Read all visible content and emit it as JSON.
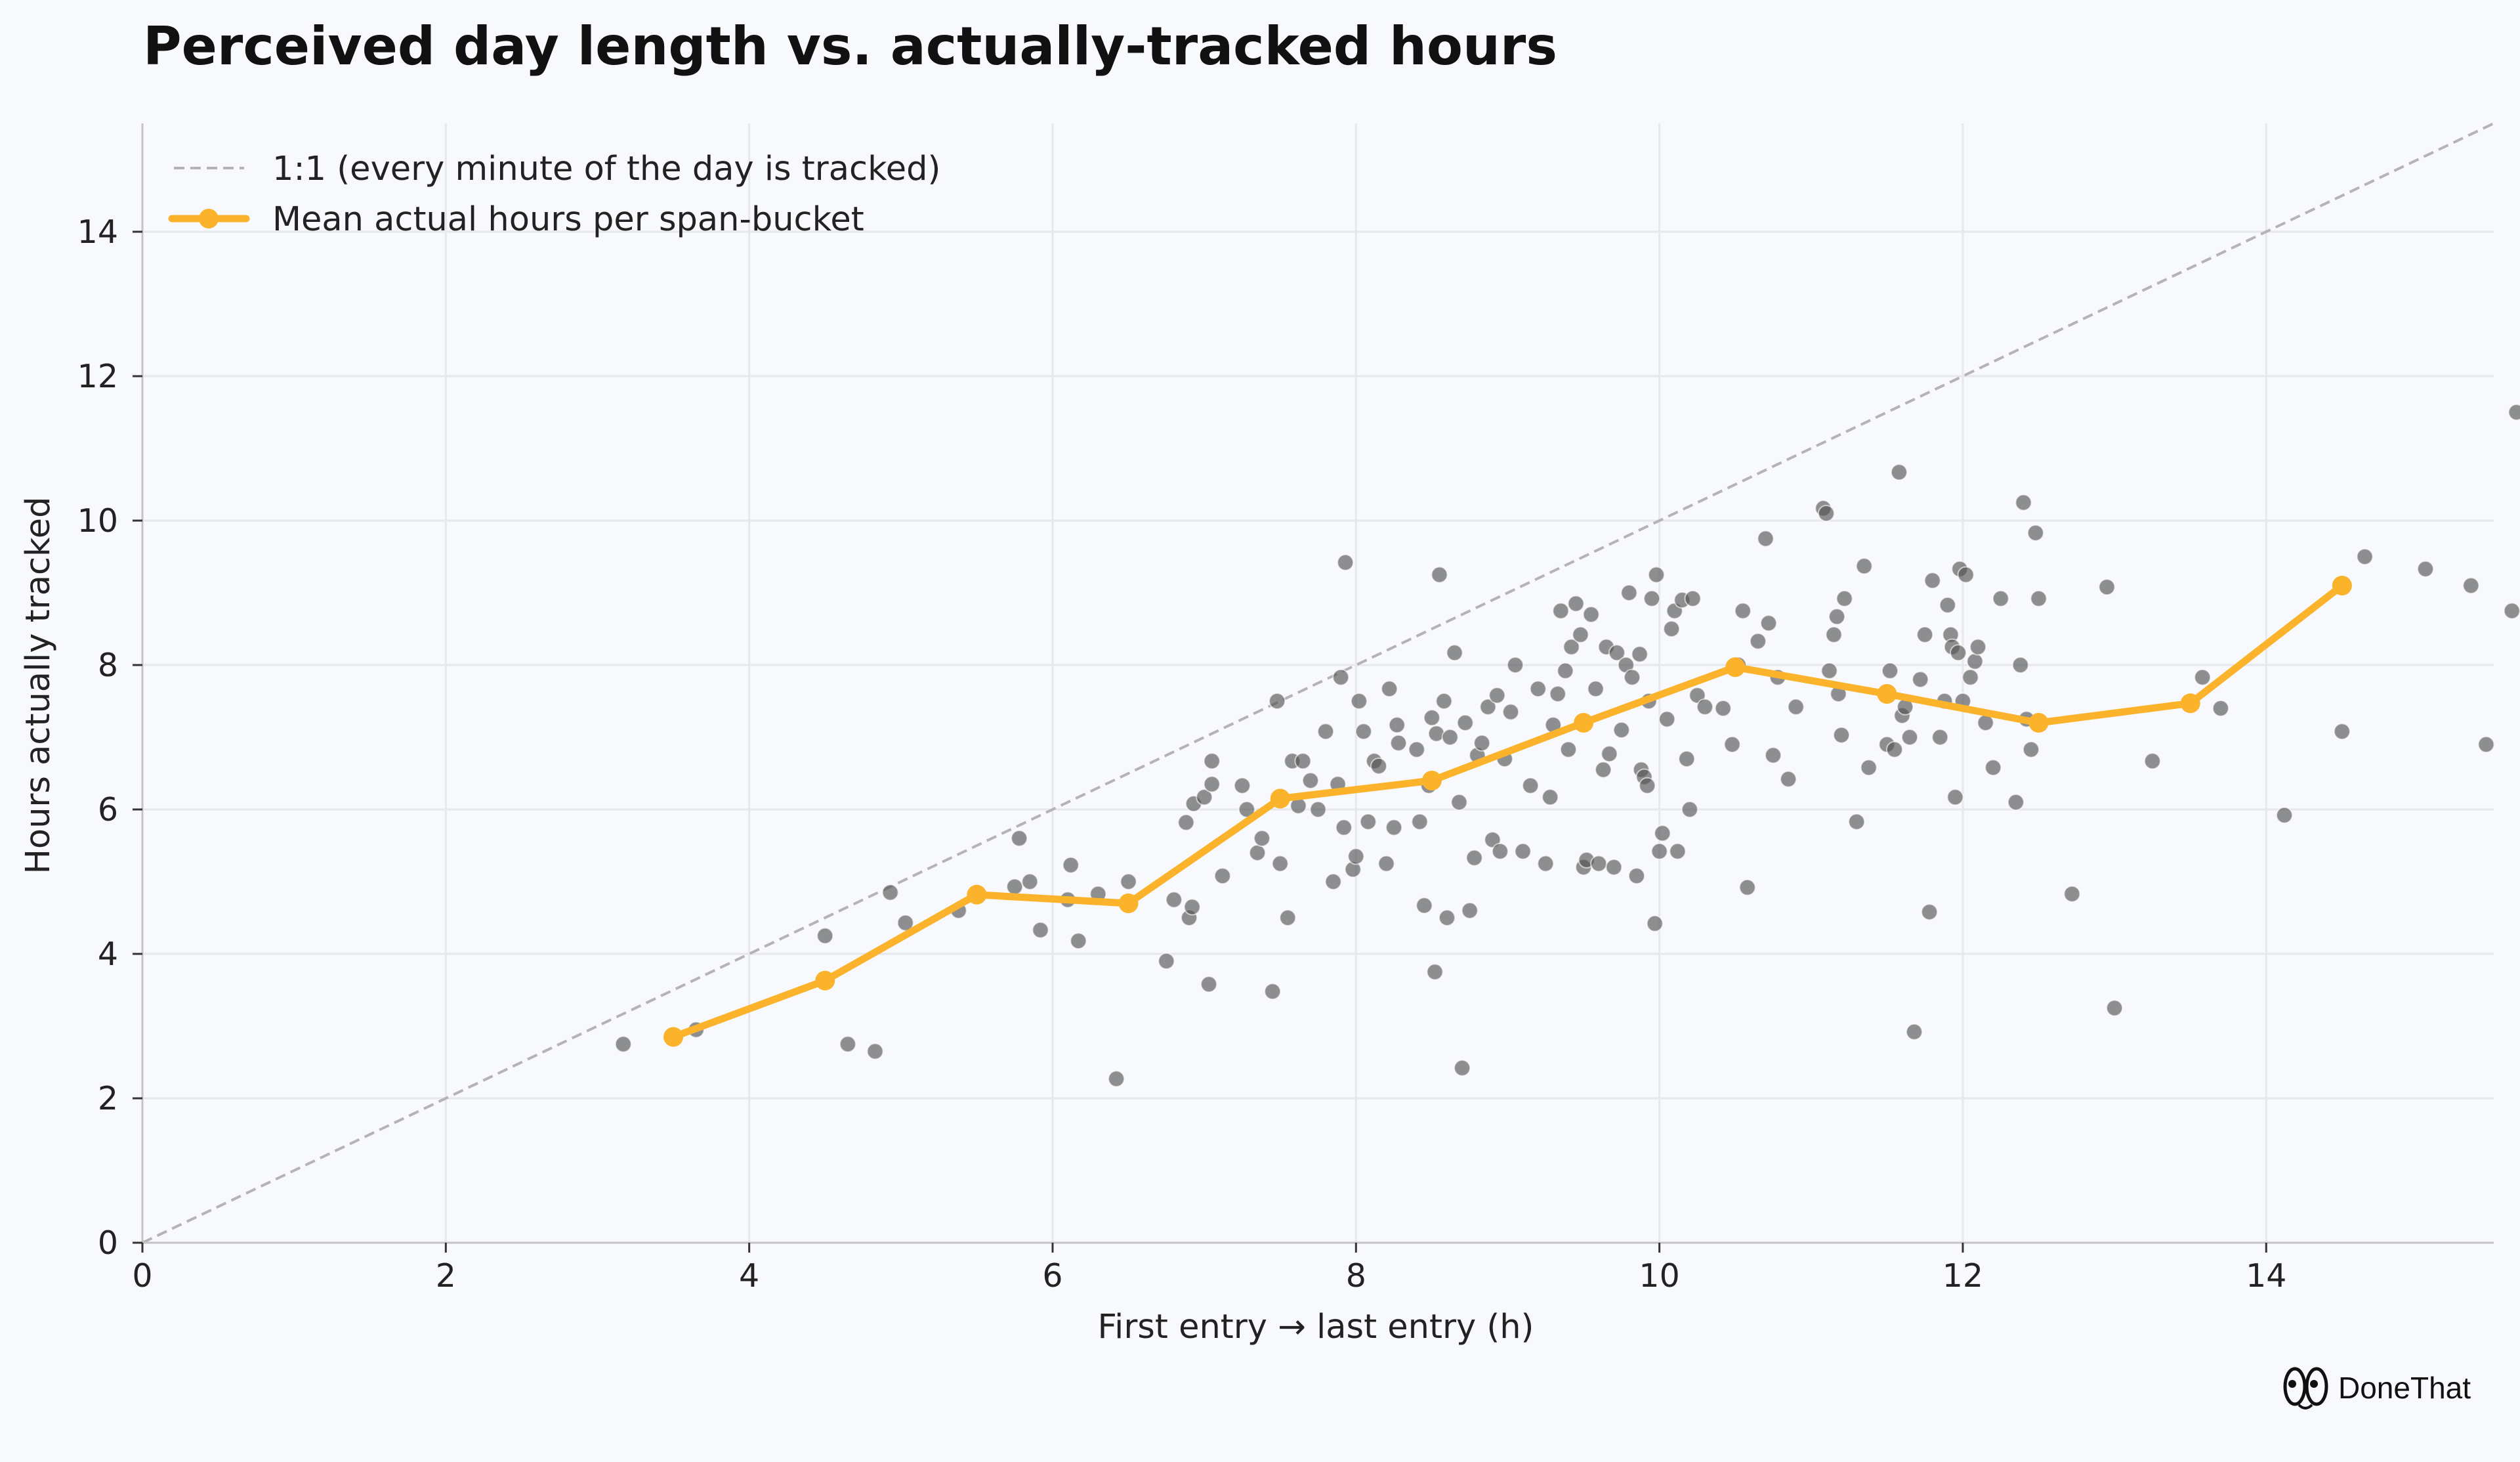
{
  "chart_data": {
    "type": "scatter",
    "title": "Perceived day length vs. actually-tracked hours",
    "xlabel": "First entry → last entry (h)",
    "ylabel": "Hours actually tracked",
    "xlim": [
      0,
      15.5
    ],
    "ylim": [
      0,
      15.5
    ],
    "xticks": [
      0,
      2,
      4,
      6,
      8,
      10,
      12,
      14
    ],
    "yticks": [
      0,
      2,
      4,
      6,
      8,
      10,
      12,
      14
    ],
    "grid": true,
    "legend_position": "top-left",
    "reference_line": {
      "name": "1:1 (every minute of the day is tracked)",
      "x": [
        0,
        15.5
      ],
      "y": [
        0,
        15.5
      ],
      "color": "#b4b4b4",
      "style": "dashed"
    },
    "mean_line": {
      "name": "Mean actual hours per span-bucket",
      "color": "#fbb32b",
      "x": [
        3.5,
        4.5,
        5.5,
        6.5,
        7.5,
        8.5,
        9.5,
        10.5,
        11.5,
        12.5,
        13.5,
        14.5
      ],
      "y": [
        2.85,
        3.63,
        4.82,
        4.7,
        6.15,
        6.4,
        7.2,
        7.97,
        7.6,
        7.2,
        7.47,
        9.1
      ]
    },
    "scatter_color": "#555555",
    "scatter_points": [
      [
        3.17,
        2.75
      ],
      [
        3.65,
        2.95
      ],
      [
        4.5,
        4.25
      ],
      [
        4.65,
        2.75
      ],
      [
        4.83,
        2.65
      ],
      [
        4.93,
        4.85
      ],
      [
        5.03,
        4.43
      ],
      [
        5.38,
        4.6
      ],
      [
        5.75,
        4.93
      ],
      [
        5.78,
        5.6
      ],
      [
        5.85,
        5.0
      ],
      [
        5.92,
        4.33
      ],
      [
        6.1,
        4.75
      ],
      [
        6.12,
        5.23
      ],
      [
        6.17,
        4.18
      ],
      [
        6.3,
        4.83
      ],
      [
        6.42,
        2.27
      ],
      [
        6.5,
        5.0
      ],
      [
        6.75,
        3.9
      ],
      [
        6.8,
        4.75
      ],
      [
        6.88,
        5.82
      ],
      [
        6.9,
        4.5
      ],
      [
        6.92,
        4.65
      ],
      [
        6.93,
        6.08
      ],
      [
        7.0,
        6.17
      ],
      [
        7.03,
        3.58
      ],
      [
        7.05,
        6.67
      ],
      [
        7.05,
        6.35
      ],
      [
        7.12,
        5.08
      ],
      [
        7.25,
        6.33
      ],
      [
        7.28,
        6.0
      ],
      [
        7.35,
        5.4
      ],
      [
        7.38,
        5.6
      ],
      [
        7.45,
        3.48
      ],
      [
        7.48,
        7.5
      ],
      [
        7.5,
        5.25
      ],
      [
        7.55,
        4.5
      ],
      [
        7.58,
        6.67
      ],
      [
        7.62,
        6.05
      ],
      [
        7.65,
        6.67
      ],
      [
        7.7,
        6.4
      ],
      [
        7.75,
        6.0
      ],
      [
        7.8,
        7.08
      ],
      [
        7.85,
        5.0
      ],
      [
        7.88,
        6.35
      ],
      [
        7.9,
        7.83
      ],
      [
        7.92,
        5.75
      ],
      [
        7.93,
        9.42
      ],
      [
        7.98,
        5.17
      ],
      [
        8.0,
        5.35
      ],
      [
        8.02,
        7.5
      ],
      [
        8.05,
        7.08
      ],
      [
        8.08,
        5.83
      ],
      [
        8.12,
        6.67
      ],
      [
        8.15,
        6.6
      ],
      [
        8.2,
        5.25
      ],
      [
        8.22,
        7.67
      ],
      [
        8.25,
        5.75
      ],
      [
        8.27,
        7.17
      ],
      [
        8.28,
        6.92
      ],
      [
        8.4,
        6.83
      ],
      [
        8.42,
        5.83
      ],
      [
        8.45,
        4.67
      ],
      [
        8.48,
        6.33
      ],
      [
        8.5,
        7.27
      ],
      [
        8.52,
        3.75
      ],
      [
        8.53,
        7.05
      ],
      [
        8.55,
        9.25
      ],
      [
        8.58,
        7.5
      ],
      [
        8.6,
        4.5
      ],
      [
        8.62,
        7.0
      ],
      [
        8.65,
        8.17
      ],
      [
        8.68,
        6.1
      ],
      [
        8.7,
        2.42
      ],
      [
        8.72,
        7.2
      ],
      [
        8.75,
        4.6
      ],
      [
        8.78,
        5.33
      ],
      [
        8.8,
        6.75
      ],
      [
        8.83,
        6.92
      ],
      [
        8.87,
        7.42
      ],
      [
        8.9,
        5.58
      ],
      [
        8.93,
        7.58
      ],
      [
        8.95,
        5.42
      ],
      [
        8.98,
        6.7
      ],
      [
        9.02,
        7.35
      ],
      [
        9.05,
        8.0
      ],
      [
        9.1,
        5.42
      ],
      [
        9.15,
        6.33
      ],
      [
        9.2,
        7.67
      ],
      [
        9.25,
        5.25
      ],
      [
        9.28,
        6.17
      ],
      [
        9.3,
        7.17
      ],
      [
        9.33,
        7.6
      ],
      [
        9.35,
        8.75
      ],
      [
        9.38,
        7.92
      ],
      [
        9.4,
        6.83
      ],
      [
        9.42,
        8.25
      ],
      [
        9.45,
        8.85
      ],
      [
        9.48,
        8.42
      ],
      [
        9.5,
        5.2
      ],
      [
        9.52,
        5.3
      ],
      [
        9.55,
        8.7
      ],
      [
        9.58,
        7.67
      ],
      [
        9.6,
        5.25
      ],
      [
        9.63,
        6.55
      ],
      [
        9.65,
        8.25
      ],
      [
        9.67,
        6.77
      ],
      [
        9.7,
        5.2
      ],
      [
        9.72,
        8.17
      ],
      [
        9.75,
        7.1
      ],
      [
        9.78,
        8.0
      ],
      [
        9.8,
        9.0
      ],
      [
        9.82,
        7.83
      ],
      [
        9.85,
        5.08
      ],
      [
        9.87,
        8.15
      ],
      [
        9.88,
        6.55
      ],
      [
        9.9,
        6.45
      ],
      [
        9.92,
        6.33
      ],
      [
        9.93,
        7.5
      ],
      [
        9.95,
        8.92
      ],
      [
        9.97,
        4.42
      ],
      [
        9.98,
        9.25
      ],
      [
        10.0,
        5.42
      ],
      [
        10.02,
        5.67
      ],
      [
        10.05,
        7.25
      ],
      [
        10.08,
        8.5
      ],
      [
        10.1,
        8.75
      ],
      [
        10.12,
        5.42
      ],
      [
        10.15,
        8.9
      ],
      [
        10.18,
        6.7
      ],
      [
        10.2,
        6.0
      ],
      [
        10.22,
        8.92
      ],
      [
        10.25,
        7.58
      ],
      [
        10.3,
        7.42
      ],
      [
        10.42,
        7.4
      ],
      [
        10.48,
        6.9
      ],
      [
        10.52,
        8.0
      ],
      [
        10.55,
        8.75
      ],
      [
        10.58,
        4.92
      ],
      [
        10.65,
        8.33
      ],
      [
        10.7,
        9.75
      ],
      [
        10.72,
        8.58
      ],
      [
        10.75,
        6.75
      ],
      [
        10.78,
        7.83
      ],
      [
        10.85,
        6.42
      ],
      [
        10.9,
        7.42
      ],
      [
        11.08,
        10.17
      ],
      [
        11.1,
        10.1
      ],
      [
        11.12,
        7.92
      ],
      [
        11.15,
        8.42
      ],
      [
        11.17,
        8.67
      ],
      [
        11.18,
        7.6
      ],
      [
        11.2,
        7.03
      ],
      [
        11.22,
        8.92
      ],
      [
        11.3,
        5.83
      ],
      [
        11.35,
        9.37
      ],
      [
        11.38,
        6.58
      ],
      [
        11.5,
        6.9
      ],
      [
        11.52,
        7.92
      ],
      [
        11.55,
        6.83
      ],
      [
        11.58,
        10.67
      ],
      [
        11.6,
        7.3
      ],
      [
        11.62,
        7.42
      ],
      [
        11.65,
        7.0
      ],
      [
        11.68,
        2.92
      ],
      [
        11.72,
        7.8
      ],
      [
        11.75,
        8.42
      ],
      [
        11.78,
        4.58
      ],
      [
        11.8,
        9.17
      ],
      [
        11.85,
        7.0
      ],
      [
        11.88,
        7.5
      ],
      [
        11.9,
        8.83
      ],
      [
        11.92,
        8.42
      ],
      [
        11.93,
        8.25
      ],
      [
        11.95,
        6.17
      ],
      [
        11.97,
        8.17
      ],
      [
        11.98,
        9.33
      ],
      [
        12.0,
        7.5
      ],
      [
        12.02,
        9.25
      ],
      [
        12.05,
        7.83
      ],
      [
        12.08,
        8.05
      ],
      [
        12.1,
        8.25
      ],
      [
        12.15,
        7.2
      ],
      [
        12.2,
        6.58
      ],
      [
        12.25,
        8.92
      ],
      [
        12.35,
        6.1
      ],
      [
        12.38,
        8.0
      ],
      [
        12.4,
        10.25
      ],
      [
        12.42,
        7.25
      ],
      [
        12.45,
        6.83
      ],
      [
        12.48,
        9.83
      ],
      [
        12.5,
        8.92
      ],
      [
        12.72,
        4.83
      ],
      [
        12.95,
        9.08
      ],
      [
        13.0,
        3.25
      ],
      [
        13.25,
        6.67
      ],
      [
        13.58,
        7.83
      ],
      [
        13.7,
        7.4
      ],
      [
        14.12,
        5.92
      ],
      [
        14.5,
        7.08
      ],
      [
        14.65,
        9.5
      ],
      [
        15.05,
        9.33
      ],
      [
        15.35,
        9.1
      ],
      [
        15.45,
        6.9
      ],
      [
        15.62,
        8.75
      ],
      [
        15.65,
        11.5
      ]
    ]
  },
  "brand": {
    "name": "DoneThat",
    "icon": "eyes-icon"
  }
}
